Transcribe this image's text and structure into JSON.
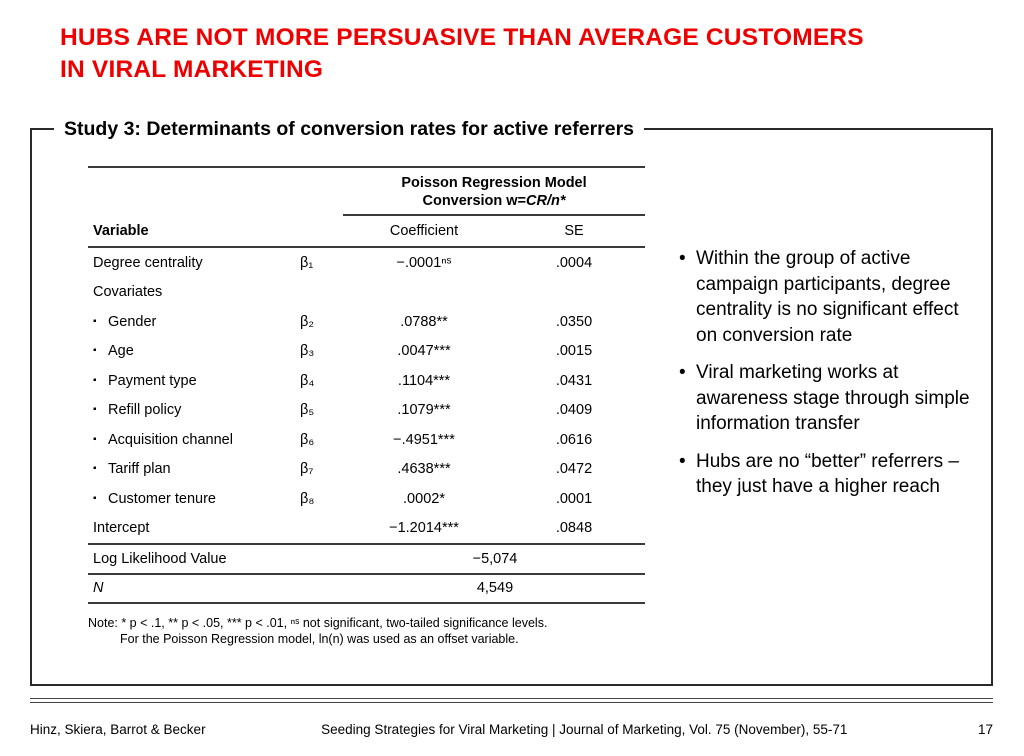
{
  "slide": {
    "title_line1": "HUBS ARE NOT MORE PERSUASIVE THAN AVERAGE CUSTOMERS",
    "title_line2": "IN VIRAL MARKETING",
    "accent_color": "#ee0000"
  },
  "study_box": {
    "heading": "Study 3: Determinants of conversion rates for active referrers"
  },
  "table": {
    "model_header_line1": "Poisson Regression Model",
    "model_header_line2_prefix": "Conversion w=",
    "model_header_line2_italic": "CR/n*",
    "col_variable": "Variable",
    "col_coefficient": "Coefficient",
    "col_se": "SE",
    "rows": [
      {
        "label": "Degree centrality",
        "bullet": false,
        "beta": "β₁",
        "coef": "−.0001ⁿˢ",
        "se": ".0004"
      },
      {
        "label": "Covariates",
        "bullet": false,
        "beta": "",
        "coef": "",
        "se": ""
      },
      {
        "label": "Gender",
        "bullet": true,
        "beta": "β₂",
        "coef": ".0788**",
        "se": ".0350"
      },
      {
        "label": "Age",
        "bullet": true,
        "beta": "β₃",
        "coef": ".0047***",
        "se": ".0015"
      },
      {
        "label": "Payment type",
        "bullet": true,
        "beta": "β₄",
        "coef": ".1104***",
        "se": ".0431"
      },
      {
        "label": "Refill policy",
        "bullet": true,
        "beta": "β₅",
        "coef": ".1079***",
        "se": ".0409"
      },
      {
        "label": "Acquisition channel",
        "bullet": true,
        "beta": "β₆",
        "coef": "−.4951***",
        "se": ".0616"
      },
      {
        "label": "Tariff plan",
        "bullet": true,
        "beta": "β₇",
        "coef": ".4638***",
        "se": ".0472"
      },
      {
        "label": "Customer tenure",
        "bullet": true,
        "beta": "β₈",
        "coef": ".0002*",
        "se": ".0001"
      },
      {
        "label": "Intercept",
        "bullet": false,
        "beta": "",
        "coef": "−1.2014***",
        "se": ".0848"
      }
    ],
    "summary_rows": [
      {
        "label": "Log Likelihood Value",
        "value": "−5,074",
        "italic_label": false
      },
      {
        "label": "N",
        "value": "4,549",
        "italic_label": true
      }
    ],
    "note_line1": "Note: * p < .1, ** p < .05, *** p < .01, ⁿˢ not significant, two-tailed significance levels.",
    "note_line2": "For the Poisson Regression model, ln(n) was used as an offset variable."
  },
  "insights": [
    "Within the group of active campaign participants, degree centrality is no significant effect on conversion rate",
    "Viral marketing works at awareness stage through simple information transfer",
    "Hubs are no “better” referrers – they just have a higher reach"
  ],
  "footer": {
    "authors": "Hinz, Skiera, Barrot & Becker",
    "center": "Seeding Strategies for Viral Marketing  |  Journal of Marketing, Vol. 75 (November), 55-71",
    "page": "17"
  }
}
